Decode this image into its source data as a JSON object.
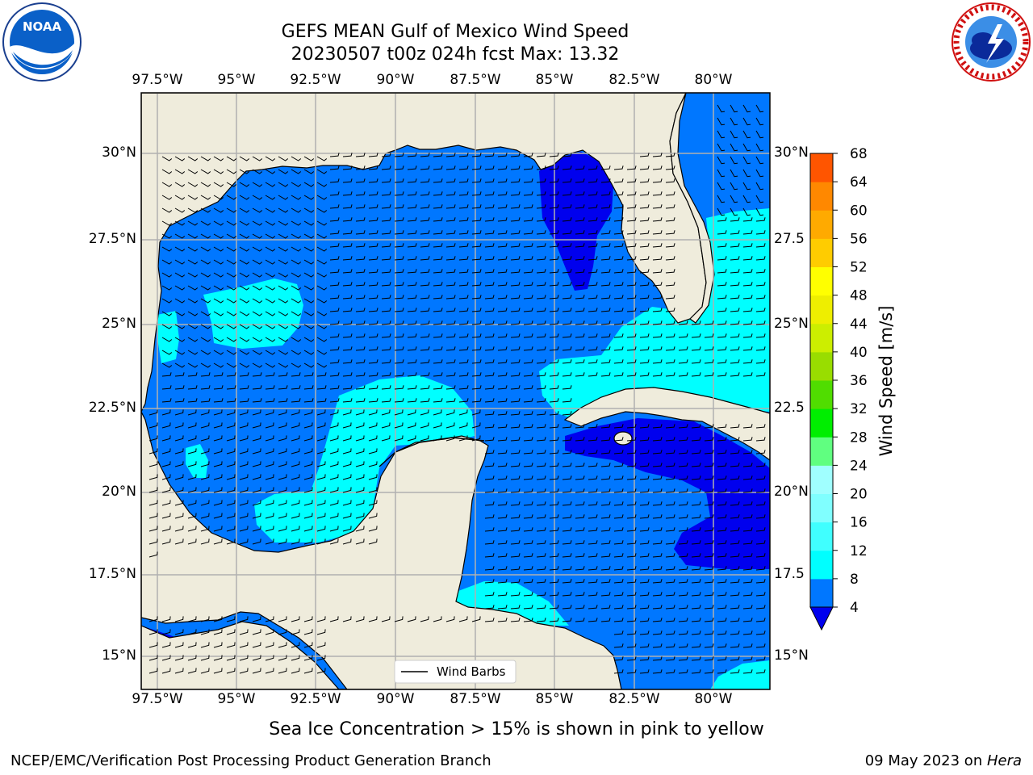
{
  "title_line1": "GEFS MEAN Gulf of Mexico Wind Speed",
  "title_line2": "20230507 t00z 024h fcst   Max: 13.32",
  "lon_labels": [
    "97.5°W",
    "95°W",
    "92.5°W",
    "90°W",
    "87.5°W",
    "85°W",
    "82.5°W",
    "80°W"
  ],
  "lat_labels": [
    "30°N",
    "27.5°N",
    "25°N",
    "22.5°N",
    "20°N",
    "17.5°N",
    "15°N"
  ],
  "right_lat_labels": [
    "30°N",
    "27.5",
    "25°N",
    "22.5",
    "20°N",
    "17.5",
    "15°N"
  ],
  "colorbar": {
    "label": "Wind Speed [m/s]",
    "ticks": [
      "4",
      "8",
      "12",
      "16",
      "20",
      "24",
      "28",
      "32",
      "36",
      "40",
      "44",
      "48",
      "52",
      "56",
      "60",
      "64",
      "68"
    ],
    "colors": [
      "#0077ff",
      "#00ffff",
      "#40ffff",
      "#80ffff",
      "#a0ffff",
      "#60ff80",
      "#00ee00",
      "#50dd00",
      "#99dd00",
      "#ccee00",
      "#eeee00",
      "#ffff00",
      "#ffcc00",
      "#ffaa00",
      "#ff8800",
      "#ff5500",
      "#ff2200",
      "#ff0000"
    ],
    "under_color": "#0000ee"
  },
  "legend": {
    "label": "Wind Barbs"
  },
  "caption": "Sea Ice Concentration > 15% is shown in pink to yellow",
  "footer_left": "NCEP/EMC/Verification Post Processing Product Generation Branch",
  "footer_right_prefix": "09 May 2023 on ",
  "footer_right_host": "Hera",
  "logos": {
    "noaa": "NOAA",
    "nws": "NATIONAL WEATHER SERVICE"
  },
  "map_colors": {
    "land": "#efecdc",
    "ocean_low": "#0000ee",
    "ocean_mid": "#0077ff",
    "ocean_high": "#00ffff",
    "grid": "#b0b0b0"
  }
}
